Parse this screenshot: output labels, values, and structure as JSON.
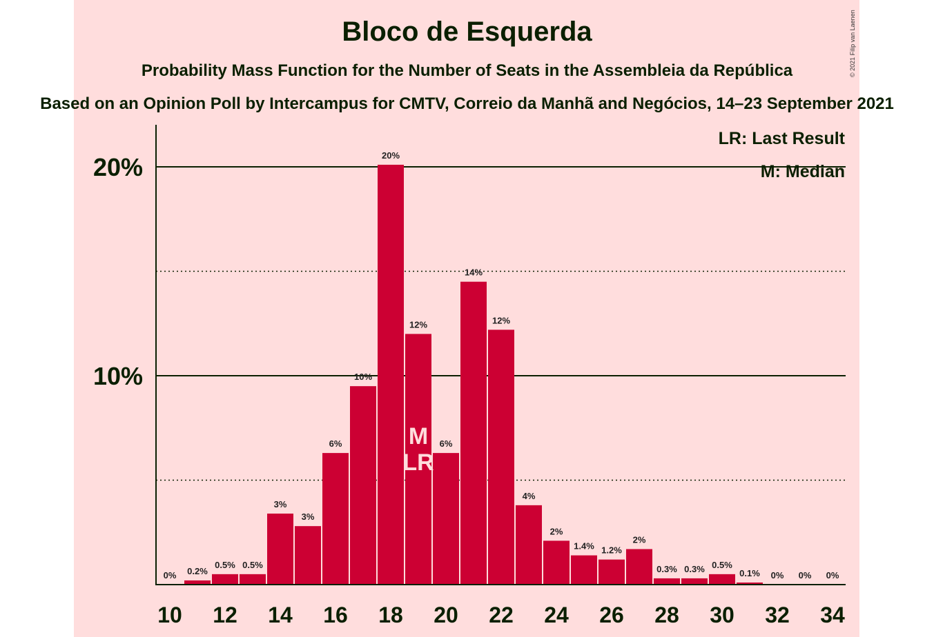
{
  "title": "Bloco de Esquerda",
  "subtitle": "Probability Mass Function for the Number of Seats in the Assembleia da República",
  "subtitle2": "Based on an Opinion Poll by Intercampus for CMTV, Correio da Manhã and Negócios, 14–23 September 2021",
  "credit": "© 2021 Filip van Laenen",
  "legend": {
    "lr": "LR: Last Result",
    "m": "M: Median"
  },
  "colors": {
    "bar": "#cc0033",
    "panel": "#ffdddd",
    "text": "#0a1f00"
  },
  "chart_data": {
    "type": "bar",
    "x": [
      10,
      11,
      12,
      13,
      14,
      15,
      16,
      17,
      18,
      19,
      20,
      21,
      22,
      23,
      24,
      25,
      26,
      27,
      28,
      29,
      30,
      31,
      32,
      33,
      34
    ],
    "values": [
      0,
      0.2,
      0.5,
      0.5,
      3.4,
      2.8,
      6.3,
      9.5,
      20.1,
      12.0,
      6.3,
      14.5,
      12.2,
      3.8,
      2.1,
      1.4,
      1.2,
      1.7,
      0.3,
      0.3,
      0.5,
      0.1,
      0,
      0,
      0
    ],
    "labels": [
      "0%",
      "0.2%",
      "0.5%",
      "0.5%",
      "3%",
      "3%",
      "6%",
      "10%",
      "20%",
      "12%",
      "6%",
      "14%",
      "12%",
      "4%",
      "2%",
      "1.4%",
      "1.2%",
      "2%",
      "0.3%",
      "0.3%",
      "0.5%",
      "0.1%",
      "0%",
      "0%",
      "0%"
    ],
    "x_tick_labels": [
      "10",
      "12",
      "14",
      "16",
      "18",
      "20",
      "22",
      "24",
      "26",
      "28",
      "30",
      "32",
      "34"
    ],
    "y_tick_labels": [
      "10%",
      "20%"
    ],
    "ylim": [
      0,
      22
    ],
    "median": 19,
    "last_result": 19,
    "median_label": "M",
    "last_result_label": "LR",
    "grid": "solid at 10% and 20%, dotted at 5% and 15%",
    "legend_position": "top-right"
  }
}
